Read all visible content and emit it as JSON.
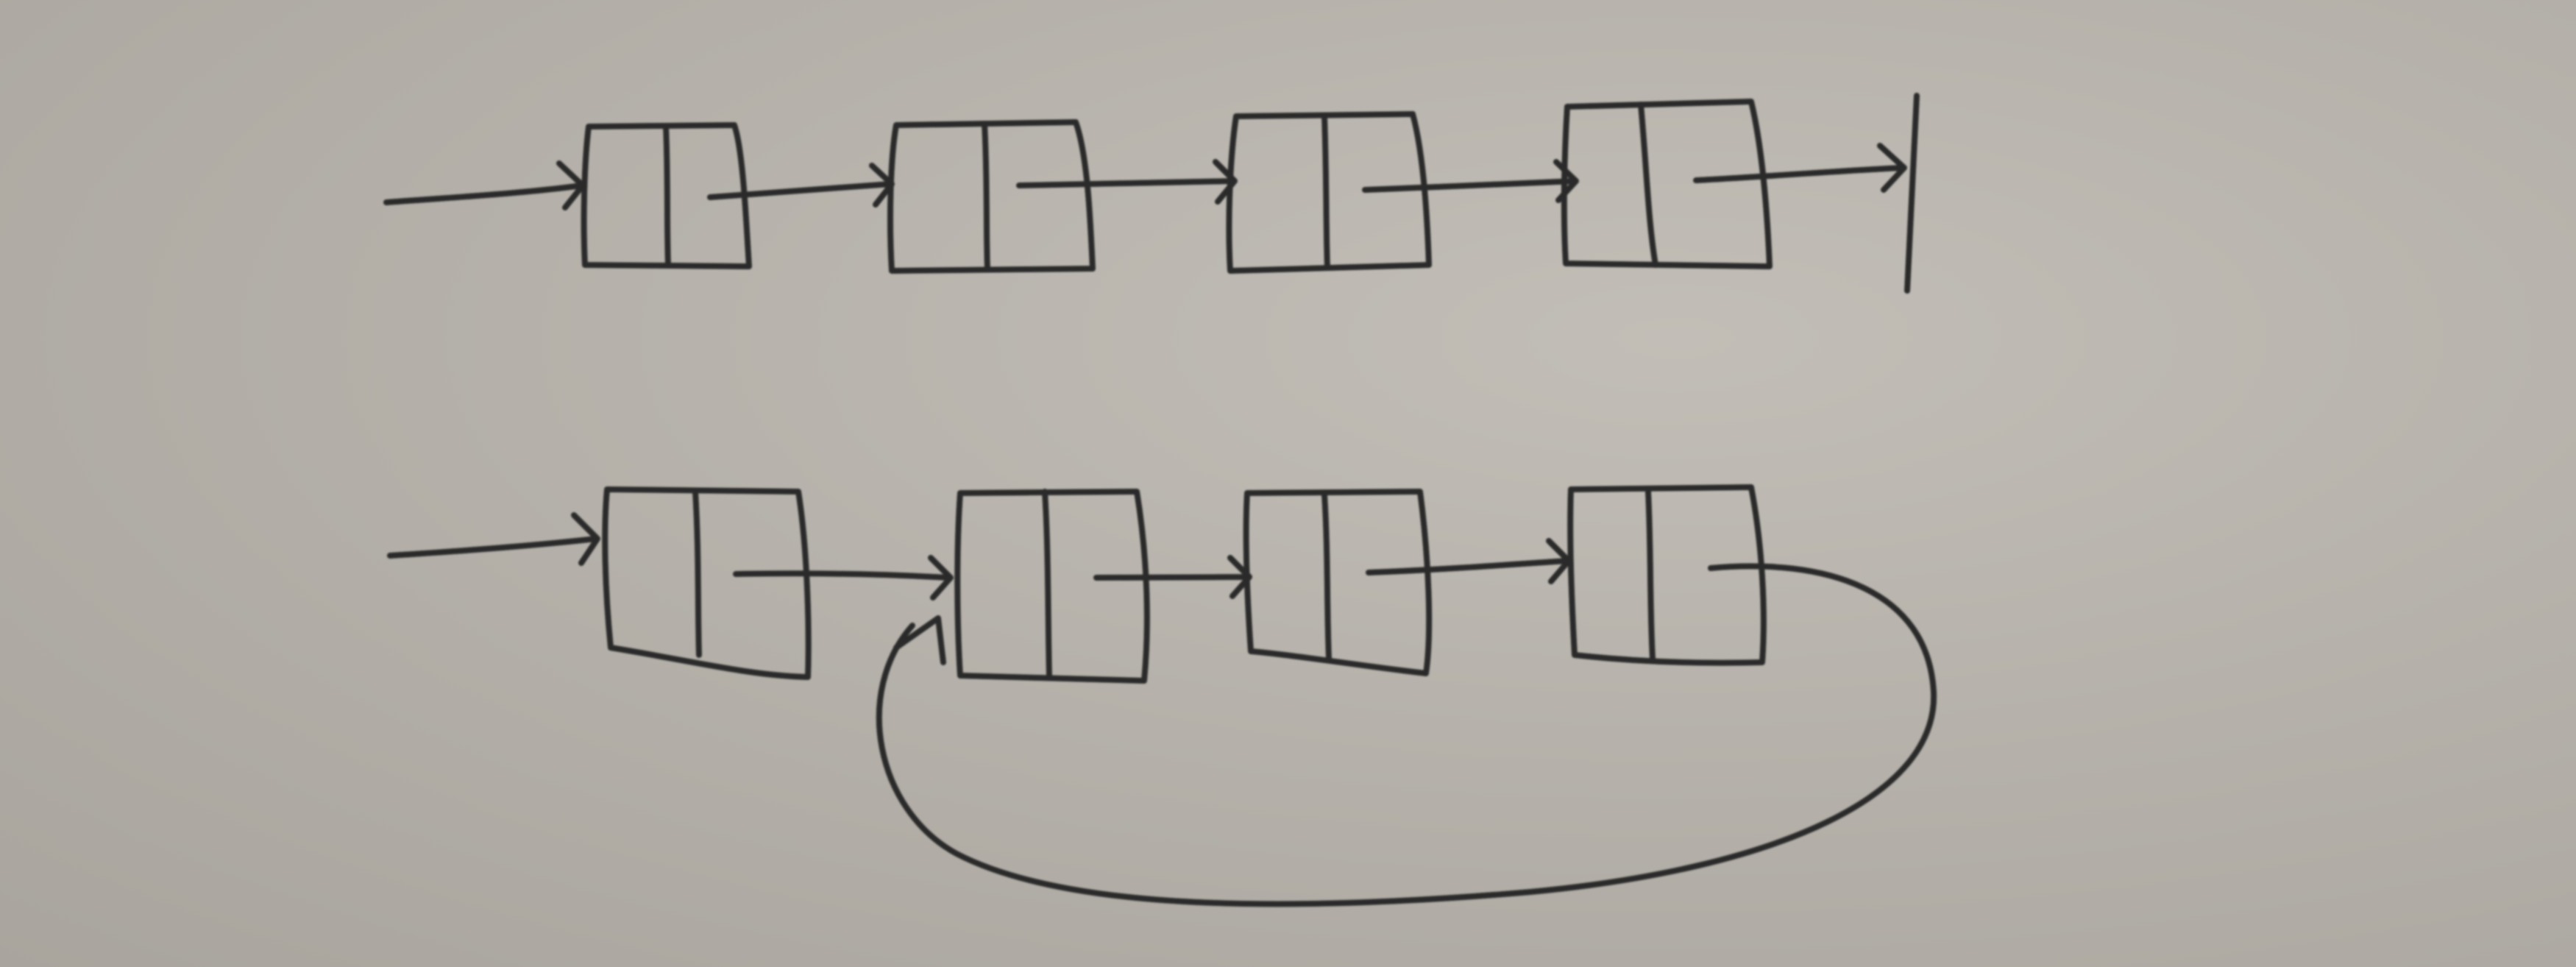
{
  "diagram": {
    "lists": [
      {
        "name": "null-terminated-list",
        "node_count": 4,
        "ends_with": "null-terminator"
      },
      {
        "name": "cyclic-list",
        "node_count": 4,
        "ends_with": "back-link-to-node-2"
      }
    ],
    "ink_color": "#2b2a2c",
    "paper_color": "#b3afa8"
  }
}
